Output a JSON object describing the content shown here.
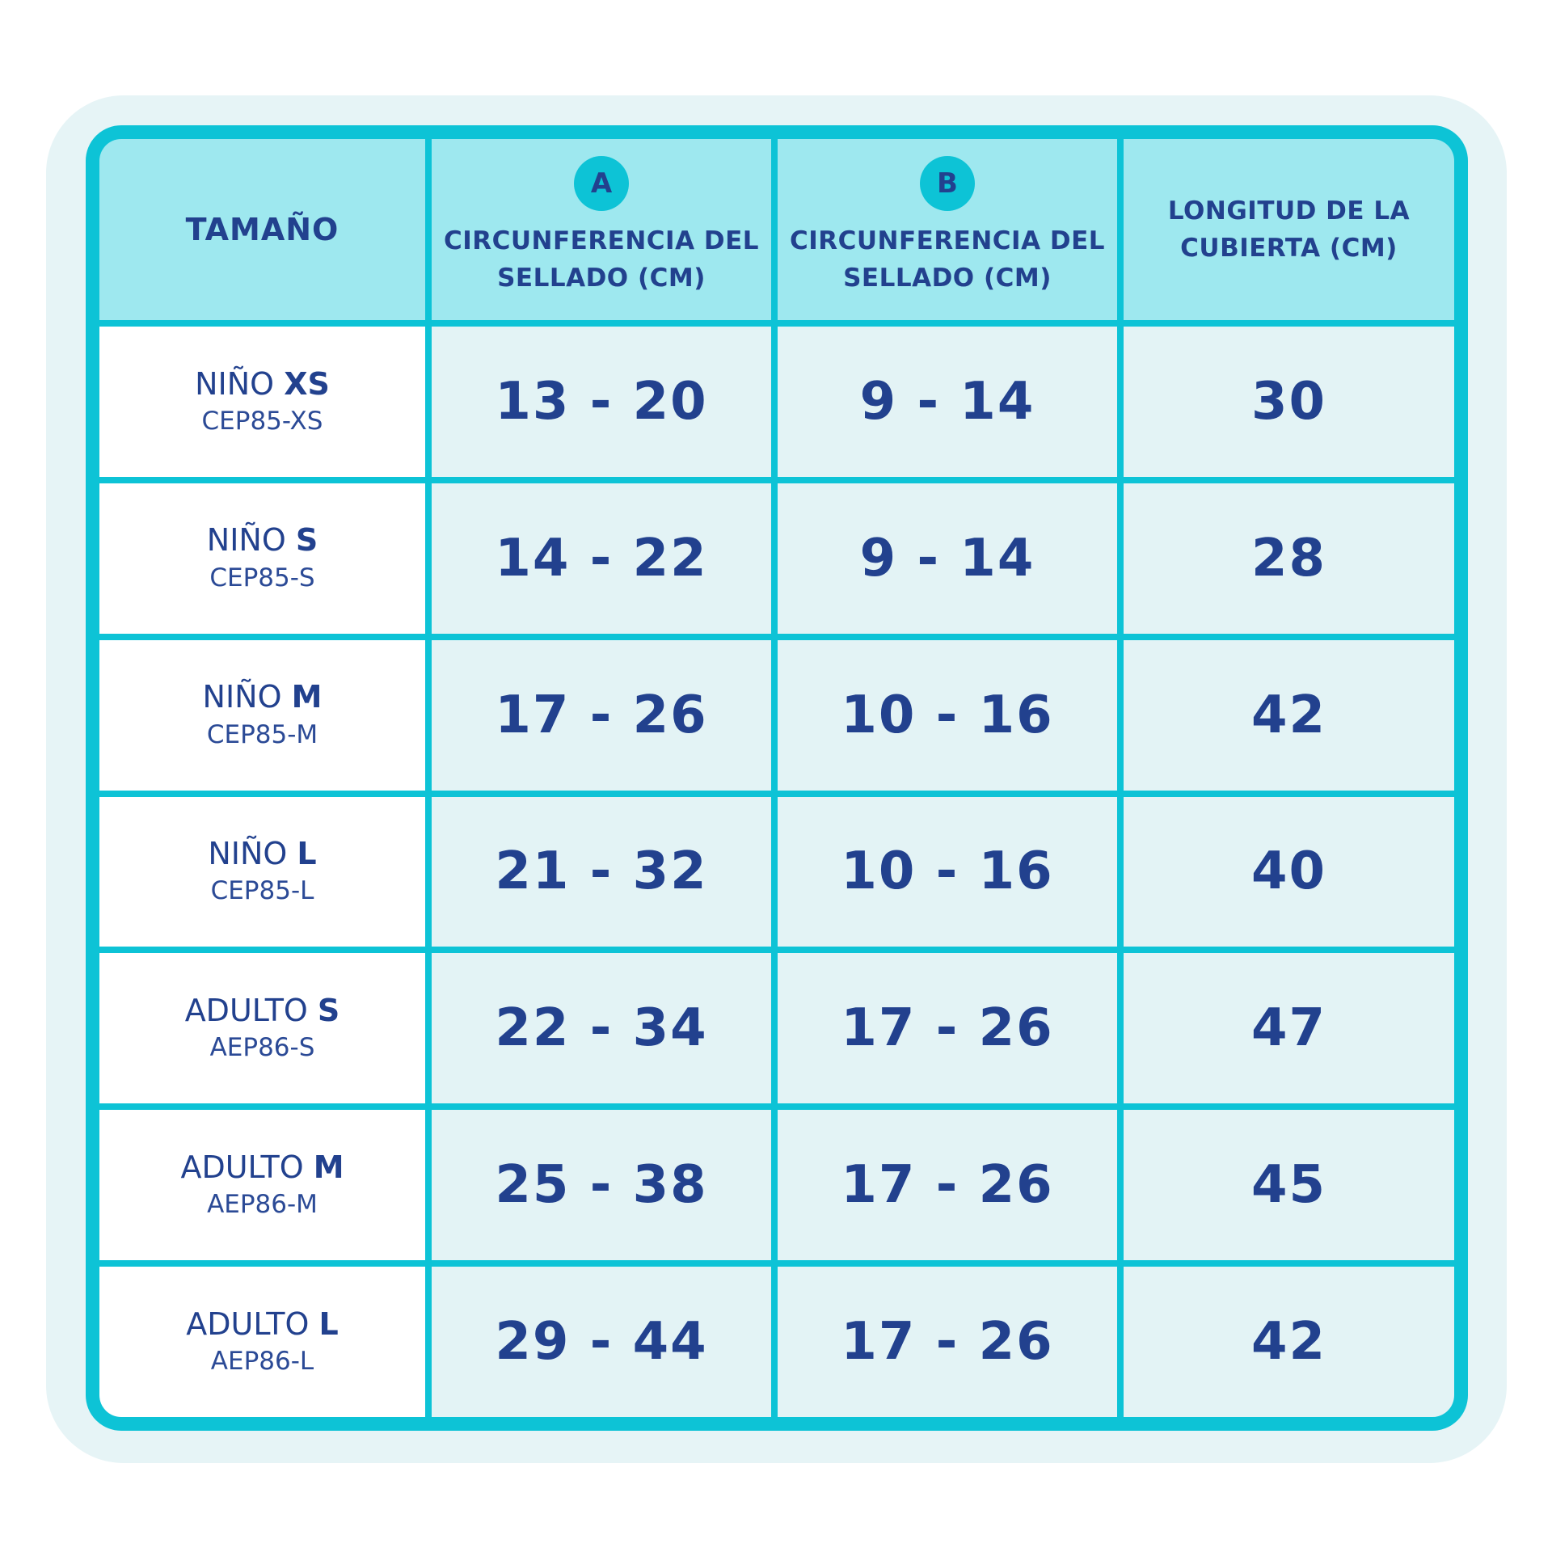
{
  "header": {
    "size": "TAMAÑO",
    "col_a": {
      "badge": "A",
      "label": "CIRCUNFERENCIA DEL SELLADO (CM)"
    },
    "col_b": {
      "badge": "B",
      "label": "CIRCUNFERENCIA DEL SELLADO (CM)"
    },
    "col_len": {
      "label": "LONGITUD DE LA CUBIERTA (CM)"
    }
  },
  "rows": [
    {
      "group": "NIÑO",
      "size": "XS",
      "code": "CEP85-XS",
      "a": "13 - 20",
      "b": "9 - 14",
      "length": "30"
    },
    {
      "group": "NIÑO",
      "size": "S",
      "code": "CEP85-S",
      "a": "14 - 22",
      "b": "9 - 14",
      "length": "28"
    },
    {
      "group": "NIÑO",
      "size": "M",
      "code": "CEP85-M",
      "a": "17 - 26",
      "b": "10 - 16",
      "length": "42"
    },
    {
      "group": "NIÑO",
      "size": "L",
      "code": "CEP85-L",
      "a": "21 - 32",
      "b": "10 - 16",
      "length": "40"
    },
    {
      "group": "ADULTO",
      "size": "S",
      "code": "AEP86-S",
      "a": "22 - 34",
      "b": "17 - 26",
      "length": "47"
    },
    {
      "group": "ADULTO",
      "size": "M",
      "code": "AEP86-M",
      "a": "25 - 38",
      "b": "17 - 26",
      "length": "45"
    },
    {
      "group": "ADULTO",
      "size": "L",
      "code": "AEP86-L",
      "a": "29 - 44",
      "b": "17 - 26",
      "length": "42"
    }
  ],
  "colors": {
    "border": "#0dc3d6",
    "header_bg": "#9ee8ef",
    "value_bg": "#e3f3f5",
    "text": "#22418e",
    "halo": "#e6f4f6"
  }
}
